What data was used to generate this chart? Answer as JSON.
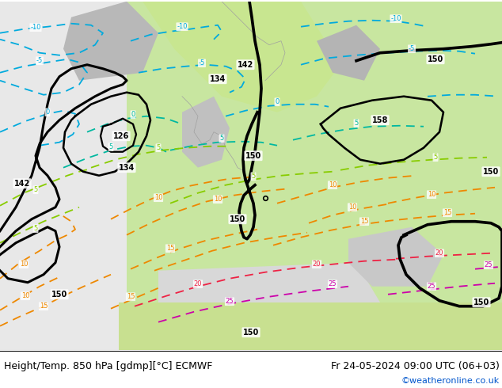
{
  "title_left": "Height/Temp. 850 hPa [gdmp][°C] ECMWF",
  "title_right": "Fr 24-05-2024 09:00 UTC (06+03)",
  "watermark": "©weatheronline.co.uk",
  "bg_color": "#ffffff",
  "land_green": "#c8e6a0",
  "land_green2": "#b8d878",
  "land_gray": "#b4b4b4",
  "sea_gray": "#d8d8d8",
  "sea_light": "#e8e8e8",
  "black_lw": 2.2,
  "cyan_color": "#00aadd",
  "teal_color": "#00b8a0",
  "green_color": "#88cc00",
  "orange_color": "#ee8800",
  "red_color": "#ee2244",
  "magenta_color": "#cc00aa",
  "label_fs": 7,
  "title_fs": 9,
  "watermark_fs": 8,
  "figsize": [
    6.34,
    4.9
  ],
  "dpi": 100
}
